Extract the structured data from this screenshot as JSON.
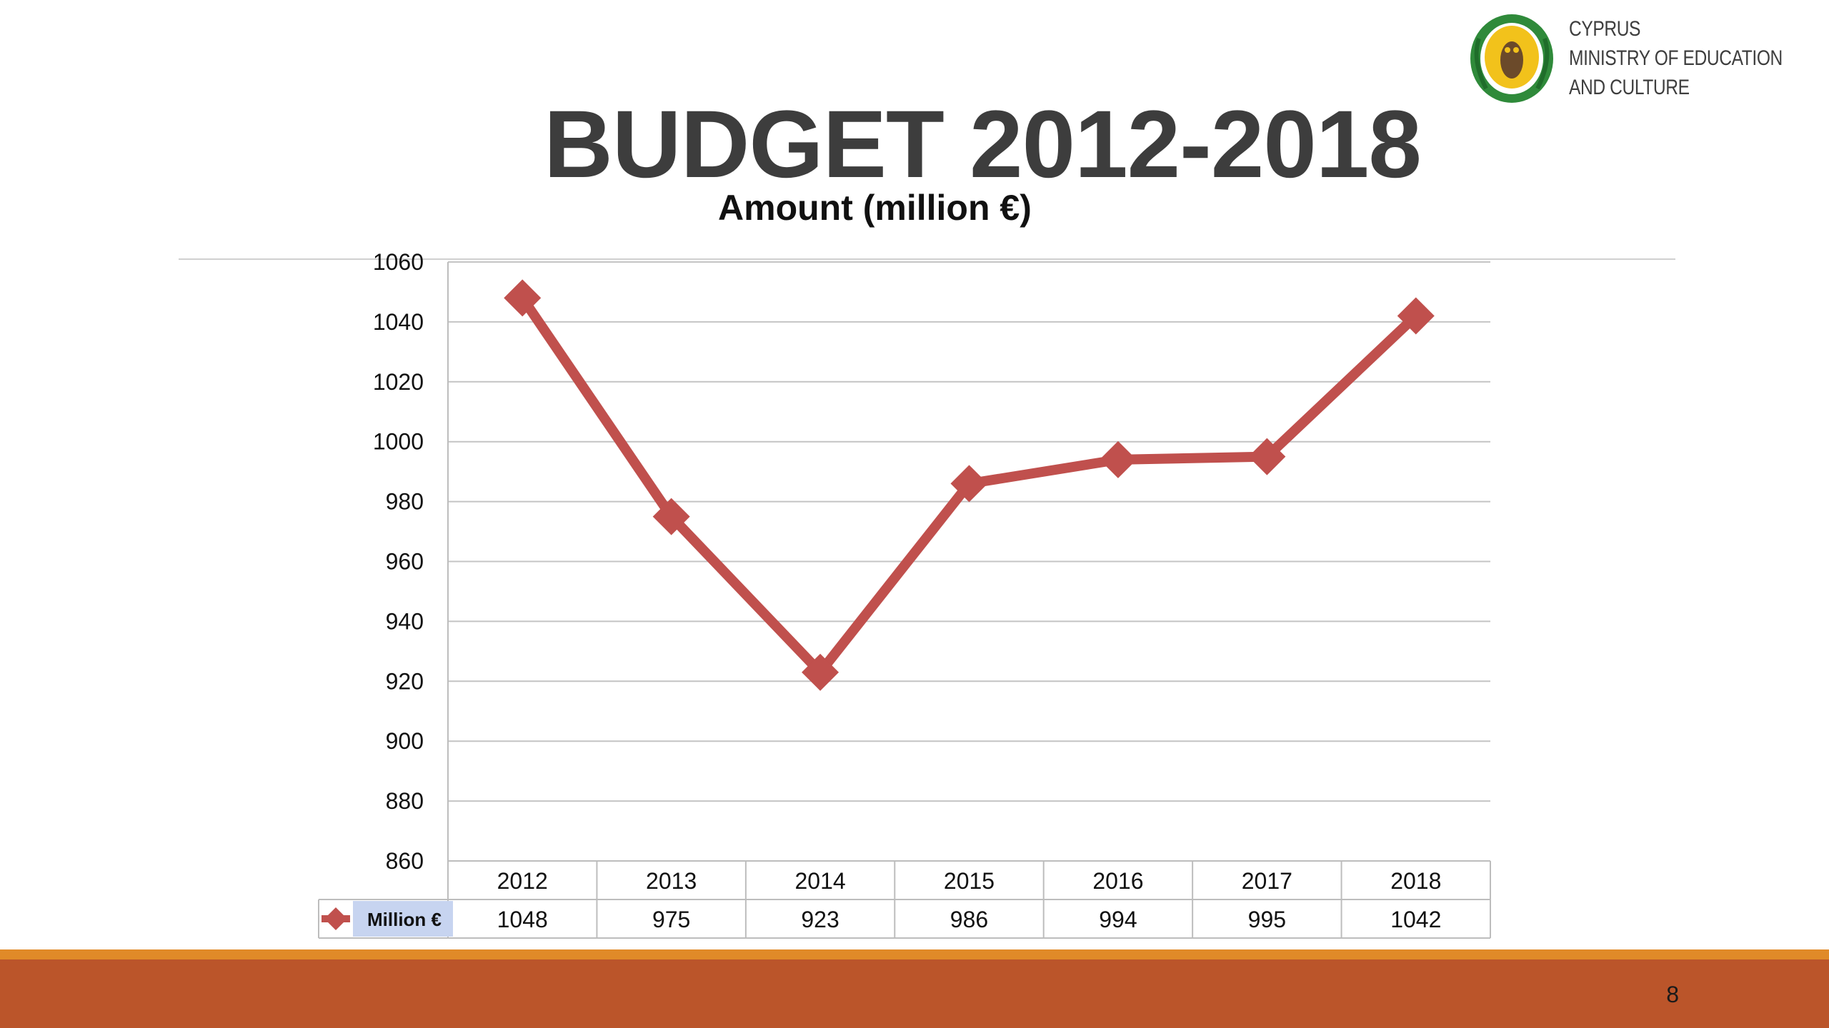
{
  "header": {
    "ministry_lines": [
      "CYPRUS",
      "MINISTRY OF EDUCATION",
      "AND CULTURE"
    ],
    "logo_icon": "cyprus-owl-emblem-icon"
  },
  "slide": {
    "title": "BUDGET 2012-2018",
    "page_number": "8"
  },
  "colors": {
    "series_line": "#c0504d",
    "footer_bar": "#bb552a",
    "footer_stripe": "#e08a28",
    "legend_label_bg": "#c7d4f0"
  },
  "chart_data": {
    "type": "line",
    "title": "Amount (million €)",
    "categories": [
      "2012",
      "2013",
      "2014",
      "2015",
      "2016",
      "2017",
      "2018"
    ],
    "series": [
      {
        "name": "Million €",
        "values": [
          1048,
          975,
          923,
          986,
          994,
          995,
          1042
        ],
        "marker": "diamond"
      }
    ],
    "ylim": [
      860,
      1060
    ],
    "yticks": [
      1060,
      1040,
      1020,
      1000,
      980,
      960,
      940,
      920,
      900,
      880,
      860
    ],
    "grid": true,
    "data_table": true,
    "legend": "data-table"
  }
}
